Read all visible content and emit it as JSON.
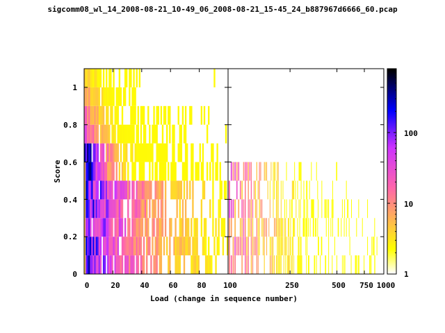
{
  "chart_data": {
    "type": "heatmap",
    "title": "sigcomm08_wl_14_2008-08-21_10-49_06_2008-08-21_15-45_24_b887967d6666_60.pcap",
    "xlabel": "Load (change in sequence number)",
    "ylabel": "Score",
    "ylim": [
      0,
      1.1
    ],
    "y_ticks": [
      "0",
      "0.2",
      "0.4",
      "0.6",
      "0.8",
      "1"
    ],
    "panels": [
      {
        "scale": "linear",
        "xlim": [
          0,
          100
        ],
        "x_ticks": [
          "0",
          "20",
          "40",
          "60",
          "80",
          "100"
        ]
      },
      {
        "scale": "log",
        "xlim": [
          100,
          1000
        ],
        "x_ticks": [
          "100",
          "250",
          "500",
          "750",
          "1000"
        ]
      }
    ],
    "colorbar": {
      "scale": "log",
      "range": [
        1,
        800
      ],
      "ticks": [
        "1",
        "10",
        "100"
      ],
      "colors": [
        "#ffffff",
        "#ffff00",
        "#ff66aa",
        "#cc33ff",
        "#0000ff",
        "#000000"
      ]
    },
    "score_bins": [
      0,
      0.1,
      0.2,
      0.3,
      0.4,
      0.5,
      0.6,
      0.7,
      0.8,
      0.9,
      1.0,
      1.1
    ]
  }
}
